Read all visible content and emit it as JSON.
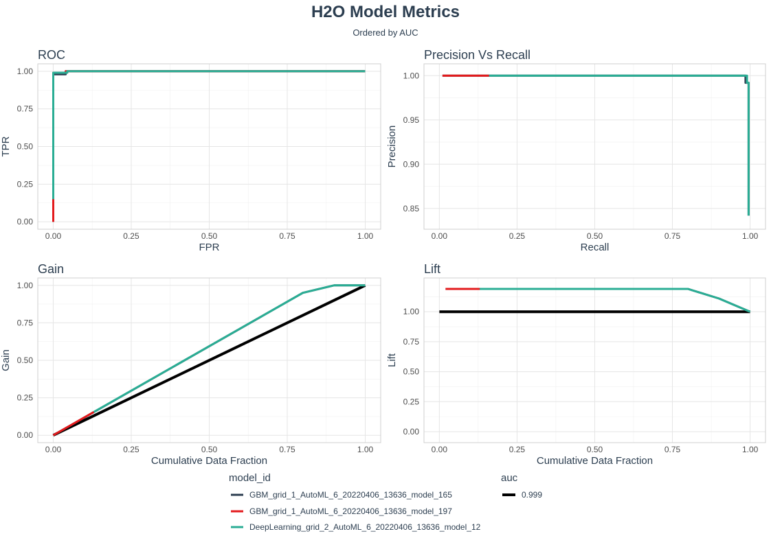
{
  "title": "H2O Model Metrics",
  "subtitle": "Ordered by AUC",
  "colors": {
    "GBM_grid_1_AutoML_6_20220406_13636_model_165": "#2c3e50",
    "GBM_grid_1_AutoML_6_20220406_13636_model_197": "#e31a1c",
    "DeepLearning_grid_2_AutoML_6_20220406_13636_model_12": "#2aad94",
    "baseline": "#000000"
  },
  "legend": {
    "model_title": "model_id",
    "models": [
      "GBM_grid_1_AutoML_6_20220406_13636_model_165",
      "GBM_grid_1_AutoML_6_20220406_13636_model_197",
      "DeepLearning_grid_2_AutoML_6_20220406_13636_model_12"
    ],
    "auc_title": "auc",
    "auc_values": [
      "0.999"
    ]
  },
  "chart_data": [
    {
      "type": "line",
      "title": "ROC",
      "xlabel": "FPR",
      "ylabel": "TPR",
      "xlim": [
        0,
        1
      ],
      "ylim": [
        0,
        1
      ],
      "xticks": [
        0,
        0.25,
        0.5,
        0.75,
        1
      ],
      "xtick_labels": [
        "0.00",
        "0.25",
        "0.50",
        "0.75",
        "1.00"
      ],
      "yticks": [
        0,
        0.25,
        0.5,
        0.75,
        1
      ],
      "ytick_labels": [
        "0.00",
        "0.25",
        "0.50",
        "0.75",
        "1.00"
      ],
      "series": [
        {
          "name": "GBM_grid_1_AutoML_6_20220406_13636_model_165",
          "x": [
            0,
            0,
            0.04,
            0.04,
            1
          ],
          "y": [
            0,
            0.98,
            0.98,
            1,
            1
          ]
        },
        {
          "name": "GBM_grid_1_AutoML_6_20220406_13636_model_197",
          "x": [
            0,
            0,
            0.04,
            0.04,
            1
          ],
          "y": [
            0,
            0.99,
            0.99,
            1,
            1
          ]
        },
        {
          "name": "DeepLearning_grid_2_AutoML_6_20220406_13636_model_12",
          "x": [
            0,
            0,
            0.045,
            0.045,
            1
          ],
          "y": [
            0.15,
            0.99,
            0.99,
            1,
            1
          ]
        }
      ]
    },
    {
      "type": "line",
      "title": "Precision Vs Recall",
      "xlabel": "Recall",
      "ylabel": "Precision",
      "xlim": [
        0,
        1
      ],
      "ylim": [
        0.835,
        1.005
      ],
      "xticks": [
        0,
        0.25,
        0.5,
        0.75,
        1
      ],
      "xtick_labels": [
        "0.00",
        "0.25",
        "0.50",
        "0.75",
        "1.00"
      ],
      "yticks": [
        0.85,
        0.9,
        0.95,
        1
      ],
      "ytick_labels": [
        "0.85",
        "0.90",
        "0.95",
        "1.00"
      ],
      "series": [
        {
          "name": "GBM_grid_1_AutoML_6_20220406_13636_model_165",
          "x": [
            0.01,
            0.985,
            0.985,
            0.995,
            0.995
          ],
          "y": [
            1,
            1,
            0.992,
            0.992,
            0.842
          ]
        },
        {
          "name": "GBM_grid_1_AutoML_6_20220406_13636_model_197",
          "x": [
            0.01,
            0.16
          ],
          "y": [
            1,
            1
          ]
        },
        {
          "name": "DeepLearning_grid_2_AutoML_6_20220406_13636_model_12",
          "x": [
            0.16,
            0.99,
            0.99,
            0.995,
            0.995
          ],
          "y": [
            1,
            1,
            0.992,
            0.992,
            0.842
          ]
        }
      ]
    },
    {
      "type": "line",
      "title": "Gain",
      "xlabel": "Cumulative Data Fraction",
      "ylabel": "Gain",
      "xlim": [
        0,
        1
      ],
      "ylim": [
        0,
        1
      ],
      "xticks": [
        0,
        0.25,
        0.5,
        0.75,
        1
      ],
      "xtick_labels": [
        "0.00",
        "0.25",
        "0.50",
        "0.75",
        "1.00"
      ],
      "yticks": [
        0,
        0.25,
        0.5,
        0.75,
        1
      ],
      "ytick_labels": [
        "0.00",
        "0.25",
        "0.50",
        "0.75",
        "1.00"
      ],
      "series": [
        {
          "name": "baseline",
          "x": [
            0,
            1
          ],
          "y": [
            0,
            1
          ]
        },
        {
          "name": "GBM_grid_1_AutoML_6_20220406_13636_model_165",
          "x": [
            0,
            0.8,
            0.9,
            1
          ],
          "y": [
            0,
            0.95,
            1,
            1
          ]
        },
        {
          "name": "GBM_grid_1_AutoML_6_20220406_13636_model_197",
          "x": [
            0,
            0.13
          ],
          "y": [
            0,
            0.155
          ]
        },
        {
          "name": "DeepLearning_grid_2_AutoML_6_20220406_13636_model_12",
          "x": [
            0.13,
            0.8,
            0.9,
            1
          ],
          "y": [
            0.155,
            0.95,
            1,
            1
          ]
        }
      ]
    },
    {
      "type": "line",
      "title": "Lift",
      "xlabel": "Cumulative Data Fraction",
      "ylabel": "Lift",
      "xlim": [
        0,
        1
      ],
      "ylim": [
        -0.03,
        1.22
      ],
      "xticks": [
        0,
        0.25,
        0.5,
        0.75,
        1
      ],
      "xtick_labels": [
        "0.00",
        "0.25",
        "0.50",
        "0.75",
        "1.00"
      ],
      "yticks": [
        0,
        0.25,
        0.5,
        0.75,
        1
      ],
      "ytick_labels": [
        "0.00",
        "0.25",
        "0.50",
        "0.75",
        "1.00"
      ],
      "series": [
        {
          "name": "baseline",
          "x": [
            0,
            1
          ],
          "y": [
            1,
            1
          ]
        },
        {
          "name": "GBM_grid_1_AutoML_6_20220406_13636_model_165",
          "x": [
            0.02,
            0.8,
            0.9,
            1
          ],
          "y": [
            1.19,
            1.19,
            1.11,
            1
          ]
        },
        {
          "name": "GBM_grid_1_AutoML_6_20220406_13636_model_197",
          "x": [
            0.02,
            0.13
          ],
          "y": [
            1.19,
            1.19
          ]
        },
        {
          "name": "DeepLearning_grid_2_AutoML_6_20220406_13636_model_12",
          "x": [
            0.13,
            0.8,
            0.9,
            1
          ],
          "y": [
            1.19,
            1.19,
            1.11,
            1
          ]
        }
      ]
    }
  ]
}
